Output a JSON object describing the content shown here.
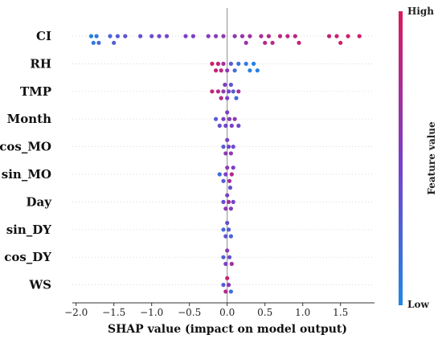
{
  "chart_data": {
    "type": "scatter",
    "subtype": "shap-beeswarm",
    "title": "",
    "xlabel": "SHAP value (impact on model output)",
    "xlim": [
      -2.05,
      1.95
    ],
    "xticks": [
      -2.0,
      -1.5,
      -1.0,
      -0.5,
      0.0,
      0.5,
      1.0,
      1.5
    ],
    "xtick_labels": [
      "−2.0",
      "−1.5",
      "−1.0",
      "−0.5",
      "0.0",
      "0.5",
      "1.0",
      "1.5"
    ],
    "features": [
      "CI",
      "RH",
      "TMP",
      "Month",
      "cos_MO",
      "sin_MO",
      "Day",
      "sin_DY",
      "cos_DY",
      "WS"
    ],
    "colorbar": {
      "title": "Feature value",
      "high_label": "High",
      "low_label": "Low",
      "low_color": "#1e88e5",
      "mid_color": "#7c3fc7",
      "high_color": "#d81b60"
    },
    "series": [
      {
        "feature": "CI",
        "points": [
          {
            "x": -1.8,
            "v": 0.05
          },
          {
            "x": -1.77,
            "v": 0.1
          },
          {
            "x": -1.73,
            "v": 0.1
          },
          {
            "x": -1.7,
            "v": 0.2
          },
          {
            "x": -1.55,
            "v": 0.25
          },
          {
            "x": -1.5,
            "v": 0.3
          },
          {
            "x": -1.45,
            "v": 0.3
          },
          {
            "x": -1.35,
            "v": 0.35
          },
          {
            "x": -1.15,
            "v": 0.4
          },
          {
            "x": -1.0,
            "v": 0.4
          },
          {
            "x": -0.9,
            "v": 0.45
          },
          {
            "x": -0.8,
            "v": 0.45
          },
          {
            "x": -0.55,
            "v": 0.5
          },
          {
            "x": -0.45,
            "v": 0.5
          },
          {
            "x": -0.25,
            "v": 0.55
          },
          {
            "x": -0.15,
            "v": 0.55
          },
          {
            "x": -0.05,
            "v": 0.6
          },
          {
            "x": 0.1,
            "v": 0.6
          },
          {
            "x": 0.2,
            "v": 0.65
          },
          {
            "x": 0.25,
            "v": 0.65
          },
          {
            "x": 0.3,
            "v": 0.7
          },
          {
            "x": 0.45,
            "v": 0.75
          },
          {
            "x": 0.5,
            "v": 0.8
          },
          {
            "x": 0.55,
            "v": 0.8
          },
          {
            "x": 0.6,
            "v": 0.8
          },
          {
            "x": 0.7,
            "v": 0.85
          },
          {
            "x": 0.8,
            "v": 0.85
          },
          {
            "x": 0.9,
            "v": 0.85
          },
          {
            "x": 0.95,
            "v": 0.9
          },
          {
            "x": 1.35,
            "v": 0.9
          },
          {
            "x": 1.45,
            "v": 0.9
          },
          {
            "x": 1.5,
            "v": 0.95
          },
          {
            "x": 1.6,
            "v": 0.95
          },
          {
            "x": 1.75,
            "v": 0.95
          }
        ]
      },
      {
        "feature": "RH",
        "points": [
          {
            "x": -0.2,
            "v": 0.95
          },
          {
            "x": -0.15,
            "v": 0.9
          },
          {
            "x": -0.12,
            "v": 0.9
          },
          {
            "x": -0.08,
            "v": 0.85
          },
          {
            "x": -0.05,
            "v": 0.7
          },
          {
            "x": 0.0,
            "v": 0.6
          },
          {
            "x": 0.05,
            "v": 0.3
          },
          {
            "x": 0.1,
            "v": 0.2
          },
          {
            "x": 0.15,
            "v": 0.15
          },
          {
            "x": 0.25,
            "v": 0.1
          },
          {
            "x": 0.3,
            "v": 0.05
          },
          {
            "x": 0.35,
            "v": 0.05
          },
          {
            "x": 0.4,
            "v": 0.05
          }
        ]
      },
      {
        "feature": "TMP",
        "points": [
          {
            "x": -0.2,
            "v": 0.9
          },
          {
            "x": -0.12,
            "v": 0.85
          },
          {
            "x": -0.08,
            "v": 0.8
          },
          {
            "x": -0.05,
            "v": 0.6
          },
          {
            "x": -0.03,
            "v": 0.5
          },
          {
            "x": 0.0,
            "v": 0.5
          },
          {
            "x": 0.02,
            "v": 0.45
          },
          {
            "x": 0.05,
            "v": 0.35
          },
          {
            "x": 0.08,
            "v": 0.3
          },
          {
            "x": 0.12,
            "v": 0.2
          },
          {
            "x": 0.15,
            "v": 0.7
          }
        ]
      },
      {
        "feature": "Month",
        "points": [
          {
            "x": -0.15,
            "v": 0.3
          },
          {
            "x": -0.1,
            "v": 0.4
          },
          {
            "x": -0.05,
            "v": 0.5
          },
          {
            "x": -0.02,
            "v": 0.45
          },
          {
            "x": 0.0,
            "v": 0.5
          },
          {
            "x": 0.03,
            "v": 0.55
          },
          {
            "x": 0.06,
            "v": 0.5
          },
          {
            "x": 0.1,
            "v": 0.6
          },
          {
            "x": 0.15,
            "v": 0.45
          }
        ]
      },
      {
        "feature": "cos_MO",
        "points": [
          {
            "x": -0.05,
            "v": 0.3
          },
          {
            "x": -0.02,
            "v": 0.6
          },
          {
            "x": 0.0,
            "v": 0.5
          },
          {
            "x": 0.02,
            "v": 0.45
          },
          {
            "x": 0.05,
            "v": 0.6
          },
          {
            "x": 0.08,
            "v": 0.4
          }
        ]
      },
      {
        "feature": "sin_MO",
        "points": [
          {
            "x": -0.1,
            "v": 0.2
          },
          {
            "x": -0.05,
            "v": 0.3
          },
          {
            "x": -0.02,
            "v": 0.5
          },
          {
            "x": 0.0,
            "v": 0.6
          },
          {
            "x": 0.03,
            "v": 0.7
          },
          {
            "x": 0.06,
            "v": 0.8
          },
          {
            "x": 0.08,
            "v": 0.5
          },
          {
            "x": 0.04,
            "v": 0.4
          }
        ]
      },
      {
        "feature": "Day",
        "points": [
          {
            "x": -0.05,
            "v": 0.4
          },
          {
            "x": -0.02,
            "v": 0.6
          },
          {
            "x": 0.0,
            "v": 0.5
          },
          {
            "x": 0.02,
            "v": 0.7
          },
          {
            "x": 0.05,
            "v": 0.55
          },
          {
            "x": 0.08,
            "v": 0.45
          }
        ]
      },
      {
        "feature": "sin_DY",
        "points": [
          {
            "x": -0.05,
            "v": 0.2
          },
          {
            "x": -0.02,
            "v": 0.35
          },
          {
            "x": 0.0,
            "v": 0.4
          },
          {
            "x": 0.02,
            "v": 0.3
          },
          {
            "x": 0.05,
            "v": 0.25
          }
        ]
      },
      {
        "feature": "cos_DY",
        "points": [
          {
            "x": -0.05,
            "v": 0.3
          },
          {
            "x": -0.02,
            "v": 0.5
          },
          {
            "x": 0.0,
            "v": 0.6
          },
          {
            "x": 0.03,
            "v": 0.4
          },
          {
            "x": 0.06,
            "v": 0.7
          }
        ]
      },
      {
        "feature": "WS",
        "points": [
          {
            "x": -0.05,
            "v": 0.3
          },
          {
            "x": -0.02,
            "v": 0.8
          },
          {
            "x": 0.0,
            "v": 0.9
          },
          {
            "x": 0.02,
            "v": 0.6
          },
          {
            "x": 0.05,
            "v": 0.2
          }
        ]
      }
    ]
  }
}
